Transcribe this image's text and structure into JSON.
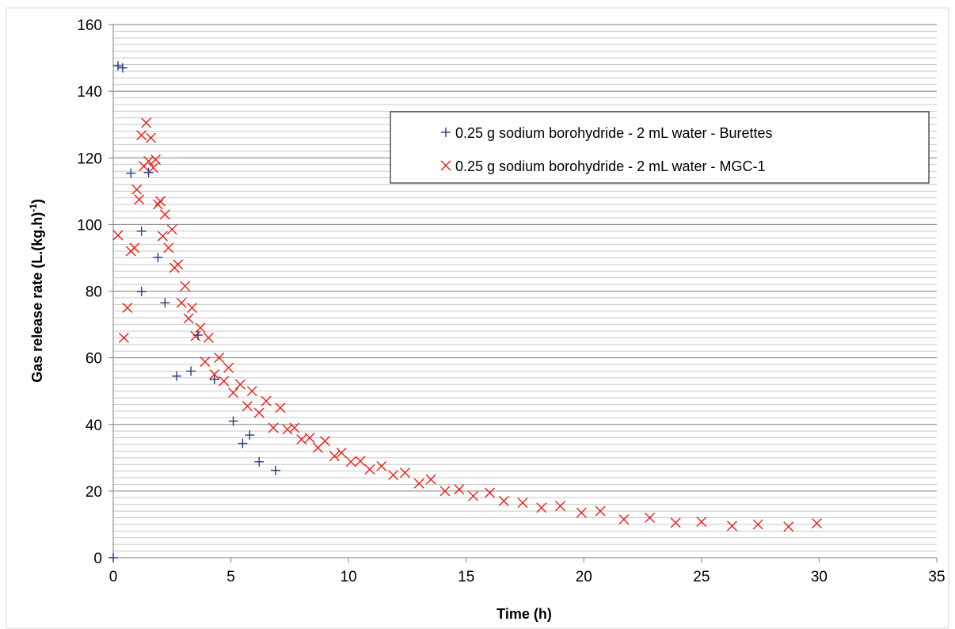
{
  "chart_data": {
    "type": "scatter",
    "title": "",
    "xlabel": "Time (h)",
    "ylabel": "Gas release rate (L.(kg.h)",
    "ylabel_sup": "-1",
    "ylabel_close": ")",
    "xlim": [
      0,
      35
    ],
    "ylim": [
      0,
      160
    ],
    "xticks": [
      0,
      5,
      10,
      15,
      20,
      25,
      30,
      35
    ],
    "yticks": [
      0,
      20,
      40,
      60,
      80,
      100,
      120,
      140,
      160
    ],
    "minor_y_step": 2,
    "grid": true,
    "legend_position": "top-right",
    "series": [
      {
        "name": "0.25 g sodium borohydride - 2 mL water - Burettes",
        "marker": "plus",
        "color": "#1f3a78",
        "points": [
          [
            0.0,
            0.0
          ],
          [
            0.2,
            147.6
          ],
          [
            0.4,
            147.0
          ],
          [
            0.75,
            115.4
          ],
          [
            1.2,
            98.0
          ],
          [
            1.2,
            79.9
          ],
          [
            1.5,
            115.6
          ],
          [
            1.9,
            90.1
          ],
          [
            2.2,
            76.5
          ],
          [
            2.7,
            54.5
          ],
          [
            3.3,
            56.0
          ],
          [
            3.6,
            66.8
          ],
          [
            4.3,
            53.5
          ],
          [
            5.1,
            41.0
          ],
          [
            5.5,
            34.3
          ],
          [
            5.8,
            36.8
          ],
          [
            6.2,
            28.8
          ],
          [
            6.9,
            26.2
          ]
        ]
      },
      {
        "name": "0.25 g sodium borohydride - 2 mL water - MGC-1",
        "marker": "x",
        "color": "#e8201a",
        "points": [
          [
            0.2,
            96.8
          ],
          [
            0.45,
            66.0
          ],
          [
            0.6,
            75.0
          ],
          [
            0.75,
            92.0
          ],
          [
            0.9,
            93.0
          ],
          [
            1.0,
            110.5
          ],
          [
            1.1,
            107.5
          ],
          [
            1.2,
            126.8
          ],
          [
            1.3,
            117.5
          ],
          [
            1.4,
            130.5
          ],
          [
            1.5,
            119.0
          ],
          [
            1.6,
            126.0
          ],
          [
            1.7,
            117.0
          ],
          [
            1.8,
            119.5
          ],
          [
            1.9,
            106.0
          ],
          [
            2.0,
            107.0
          ],
          [
            2.1,
            96.5
          ],
          [
            2.2,
            103.0
          ],
          [
            2.35,
            93.0
          ],
          [
            2.5,
            98.5
          ],
          [
            2.6,
            87.0
          ],
          [
            2.75,
            88.0
          ],
          [
            2.9,
            76.5
          ],
          [
            3.05,
            81.5
          ],
          [
            3.2,
            71.8
          ],
          [
            3.35,
            75.0
          ],
          [
            3.5,
            66.5
          ],
          [
            3.7,
            69.0
          ],
          [
            3.9,
            58.8
          ],
          [
            4.05,
            66.0
          ],
          [
            4.3,
            55.0
          ],
          [
            4.5,
            60.0
          ],
          [
            4.7,
            53.0
          ],
          [
            4.9,
            57.0
          ],
          [
            5.1,
            49.5
          ],
          [
            5.4,
            52.0
          ],
          [
            5.7,
            45.5
          ],
          [
            5.9,
            50.0
          ],
          [
            6.2,
            43.5
          ],
          [
            6.5,
            47.0
          ],
          [
            6.8,
            39.0
          ],
          [
            7.1,
            45.0
          ],
          [
            7.4,
            38.5
          ],
          [
            7.7,
            39.0
          ],
          [
            8.0,
            35.5
          ],
          [
            8.35,
            36.0
          ],
          [
            8.7,
            33.0
          ],
          [
            9.0,
            35.0
          ],
          [
            9.4,
            30.5
          ],
          [
            9.7,
            31.5
          ],
          [
            10.1,
            28.8
          ],
          [
            10.5,
            29.0
          ],
          [
            10.9,
            26.5
          ],
          [
            11.4,
            27.5
          ],
          [
            11.9,
            24.8
          ],
          [
            12.4,
            25.5
          ],
          [
            13.0,
            22.3
          ],
          [
            13.5,
            23.5
          ],
          [
            14.1,
            20.0
          ],
          [
            14.7,
            20.5
          ],
          [
            15.3,
            18.5
          ],
          [
            16.0,
            19.5
          ],
          [
            16.6,
            17.0
          ],
          [
            17.4,
            16.5
          ],
          [
            18.2,
            15.0
          ],
          [
            19.0,
            15.5
          ],
          [
            19.9,
            13.5
          ],
          [
            20.7,
            14.0
          ],
          [
            21.7,
            11.5
          ],
          [
            22.8,
            12.0
          ],
          [
            23.9,
            10.5
          ],
          [
            25.0,
            10.8
          ],
          [
            26.3,
            9.5
          ],
          [
            27.4,
            10.0
          ],
          [
            28.7,
            9.3
          ],
          [
            29.9,
            10.3
          ]
        ]
      }
    ]
  }
}
